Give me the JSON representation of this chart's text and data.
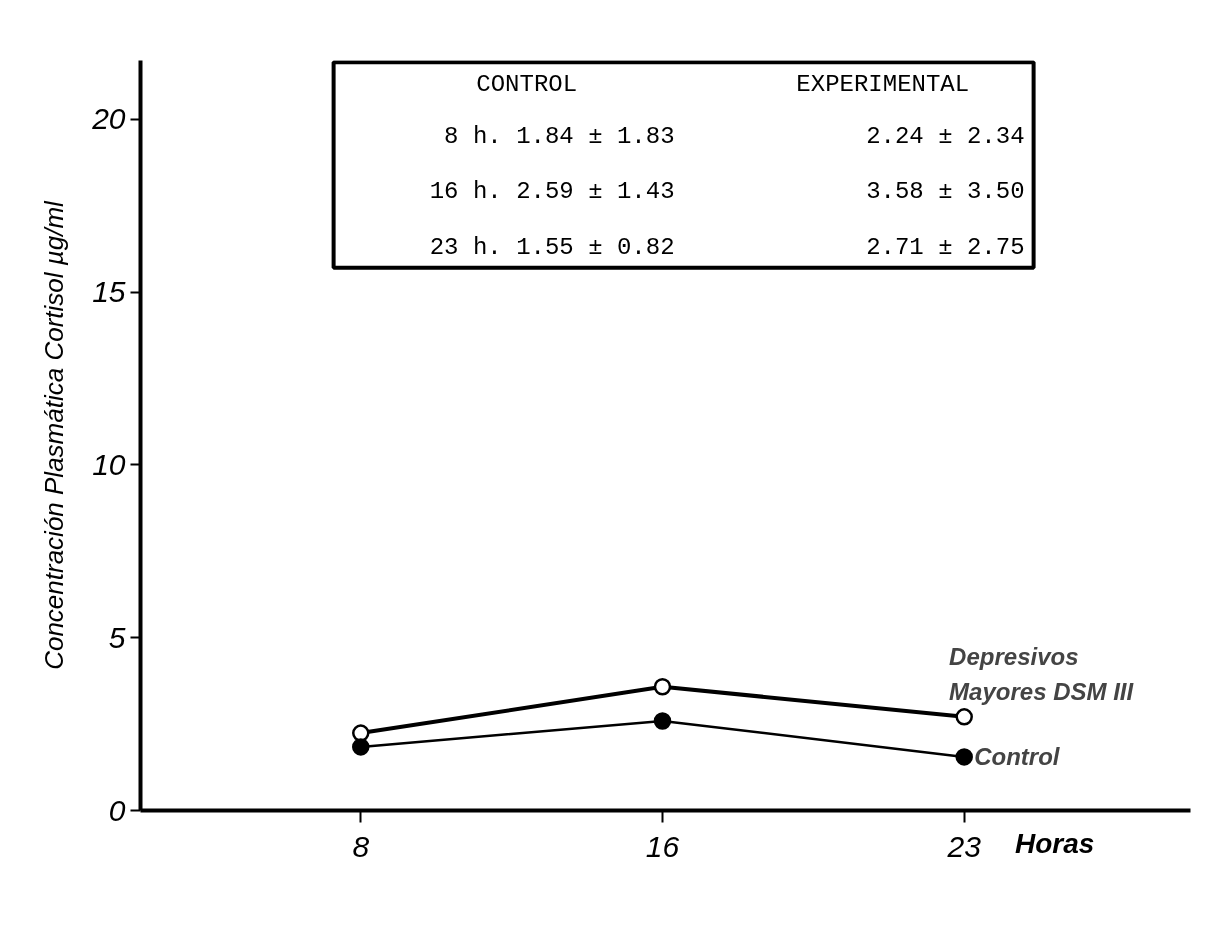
{
  "chart_data": {
    "type": "line",
    "ylabel": "Concentración Plasmática Cortisol µg/ml",
    "xlabel": "Horas",
    "categories": [
      "8",
      "16",
      "23"
    ],
    "series": [
      {
        "name": "Depresivos\nMayores DSM III",
        "color": "#000000",
        "values": [
          2.24,
          3.58,
          2.71
        ]
      },
      {
        "name": "Control",
        "color": "#000000",
        "values": [
          1.84,
          2.59,
          1.55
        ]
      }
    ],
    "ylim": [
      0,
      21.7
    ],
    "yticks": [
      0,
      5,
      10,
      15,
      20
    ],
    "marker": "circle",
    "grid": false,
    "annotations": [
      "CONTROL",
      "EXPERIMENTAL",
      "8 h. 1.84 ± 1.83",
      "2.24 ± 2.34",
      "16 h. 2.59 ± 1.43",
      "3.58 ± 3.50",
      "23 h. 1.55 ± 0.82",
      "2.71 ± 2.75"
    ]
  }
}
